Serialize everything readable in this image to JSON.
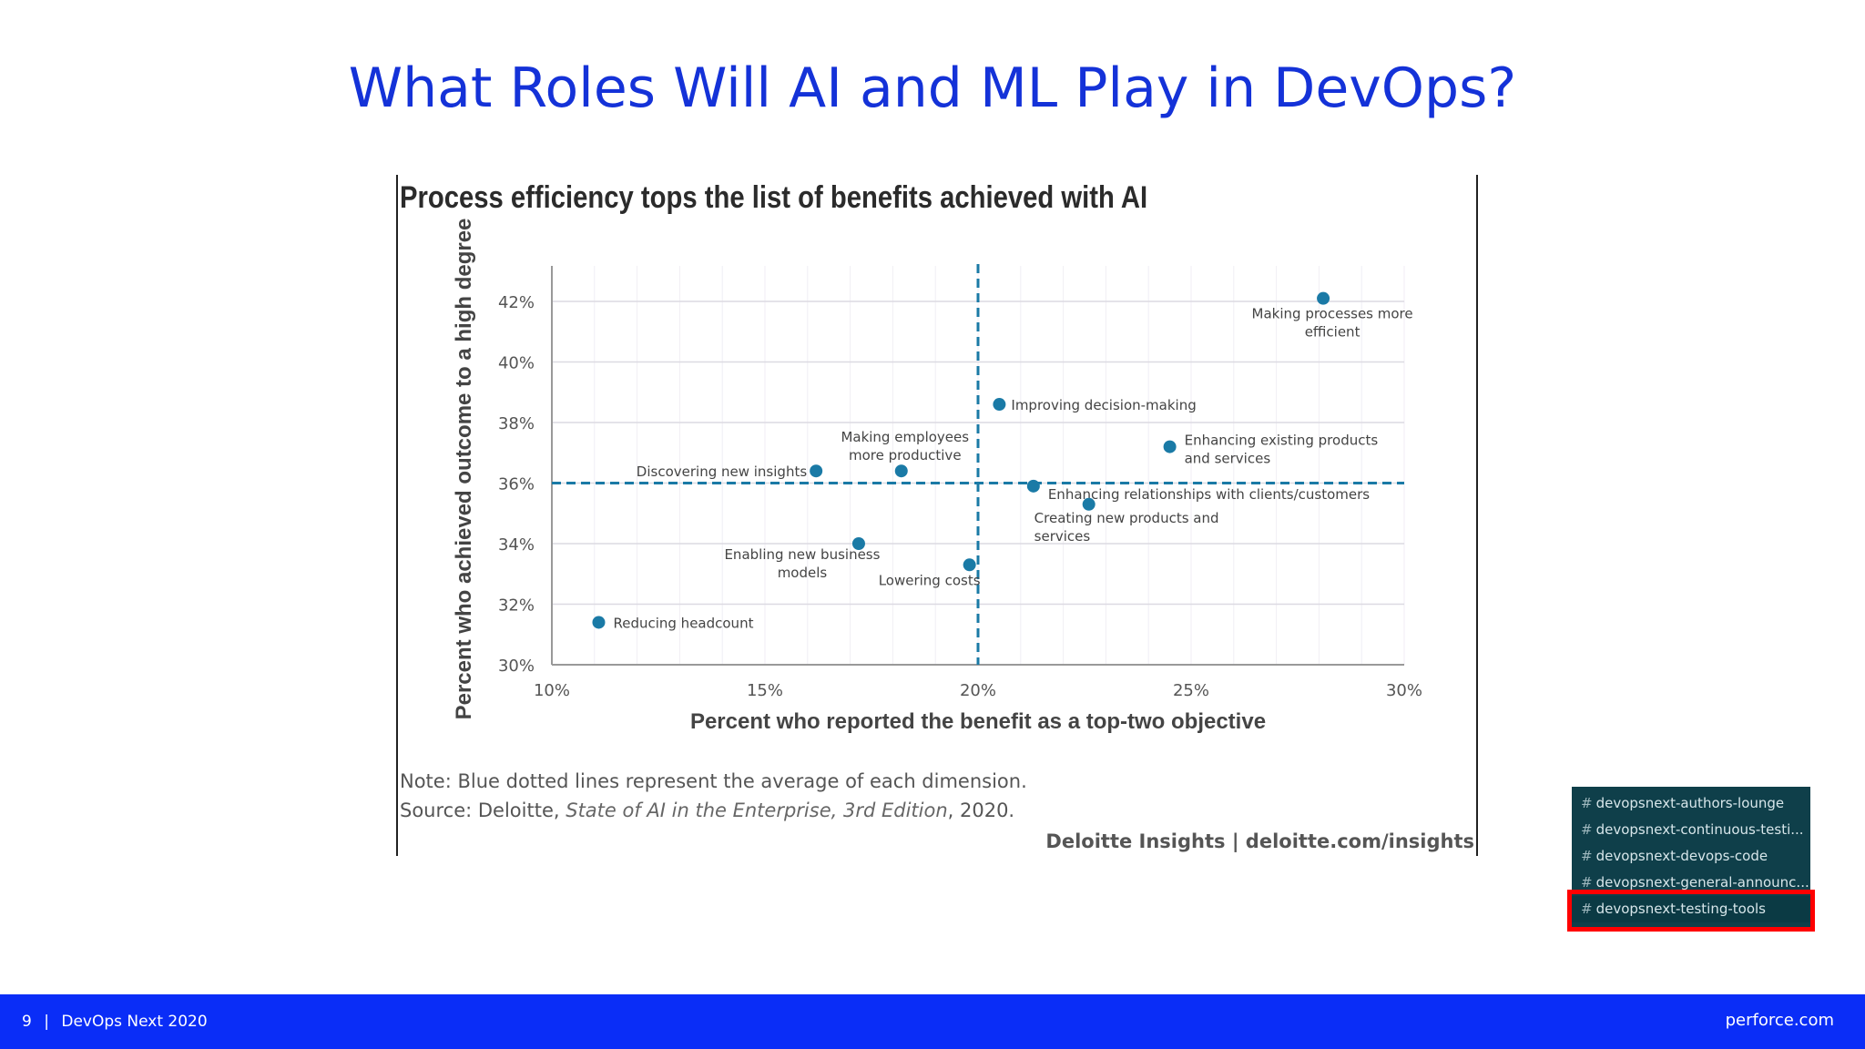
{
  "slide": {
    "title": "What Roles Will AI and ML Play in DevOps?"
  },
  "chart_data": {
    "type": "scatter",
    "title": "Process efficiency tops the list of benefits achieved with AI",
    "xlabel": "Percent who reported the benefit as a top-two objective",
    "ylabel": "Percent who achieved outcome to a high degree",
    "xlim": [
      10,
      30
    ],
    "ylim": [
      30,
      43
    ],
    "x_ticks": [
      "10%",
      "15%",
      "20%",
      "25%",
      "30%"
    ],
    "y_ticks": [
      "30%",
      "32%",
      "34%",
      "36%",
      "38%",
      "40%",
      "42%"
    ],
    "average_lines": {
      "x": 20,
      "y": 36
    },
    "grid": true,
    "point_color": "#1a7aa6",
    "points": [
      {
        "label": "Making processes more efficient",
        "x": 28.1,
        "y": 42.1
      },
      {
        "label": "Improving decision-making",
        "x": 20.5,
        "y": 38.6
      },
      {
        "label": "Enhancing existing products and services",
        "x": 24.5,
        "y": 37.2
      },
      {
        "label": "Discovering new insights",
        "x": 16.2,
        "y": 36.4
      },
      {
        "label": "Making employees more productive",
        "x": 18.2,
        "y": 36.4
      },
      {
        "label": "Enhancing relationships with clients/customers",
        "x": 21.3,
        "y": 35.9
      },
      {
        "label": "Creating new products and services",
        "x": 22.6,
        "y": 35.3
      },
      {
        "label": "Enabling new business models",
        "x": 17.2,
        "y": 34.0
      },
      {
        "label": "Lowering costs",
        "x": 19.8,
        "y": 33.3
      },
      {
        "label": "Reducing headcount",
        "x": 11.1,
        "y": 31.4
      }
    ]
  },
  "notes": {
    "note": "Note: Blue dotted lines represent the average of each dimension.",
    "source_prefix": "Source: Deloitte, ",
    "source_title": "State of AI in the Enterprise, 3rd Edition",
    "source_suffix": ", 2020.",
    "credit": "Deloitte Insights | deloitte.com/insights"
  },
  "channels": {
    "hash": "#",
    "items": [
      {
        "label": "devopsnext-authors-lounge"
      },
      {
        "label": "devopsnext-continuous-testi..."
      },
      {
        "label": "devopsnext-devops-code"
      },
      {
        "label": "devopsnext-general-announc..."
      },
      {
        "label": "devopsnext-testing-tools"
      }
    ]
  },
  "footer": {
    "page": "9",
    "separator": "|",
    "event": "DevOps Next 2020",
    "site": "perforce.com"
  }
}
